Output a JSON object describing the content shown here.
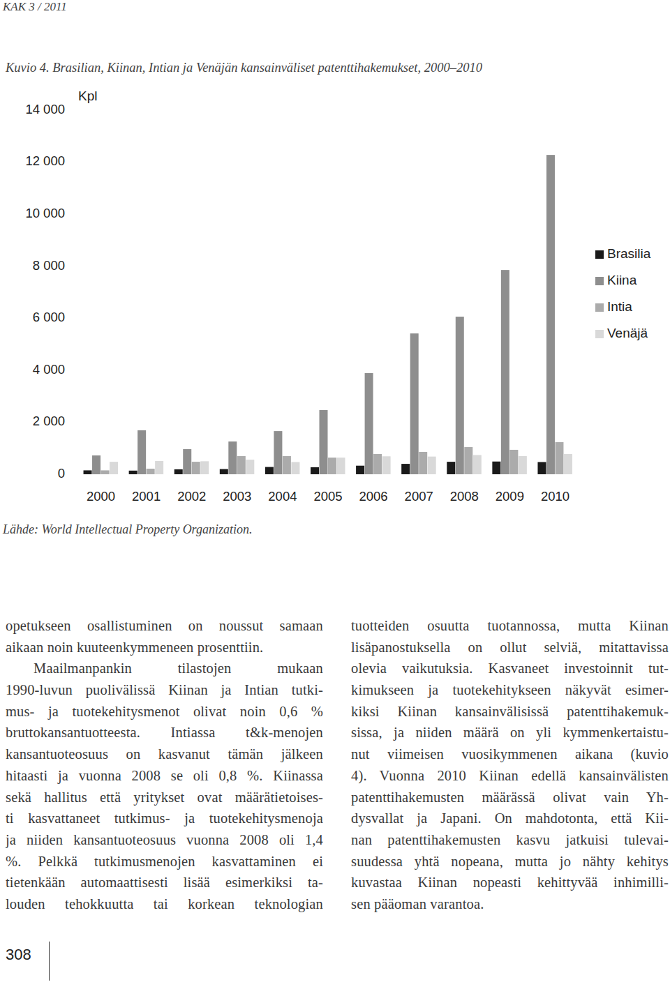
{
  "header": {
    "text": "KAK 3 / 2011"
  },
  "chart_data": {
    "type": "bar",
    "title": "Kuvio 4. Brasilian, Kiinan, Intian ja Venäjän kansainväliset patenttihakemukset, 2000–2010",
    "y_label": "Kpl",
    "source": "Lähde: World Intellectual Property Organization.",
    "categories": [
      "2000",
      "2001",
      "2002",
      "2003",
      "2004",
      "2005",
      "2006",
      "2007",
      "2008",
      "2009",
      "2010"
    ],
    "series": [
      {
        "name": "Brasilia",
        "color": "#1a1a1a",
        "values": [
          150,
          140,
          190,
          200,
          280,
          270,
          330,
          400,
          480,
          490,
          470
        ]
      },
      {
        "name": "Kiina",
        "color": "#8e8e8e",
        "values": [
          724,
          1690,
          965,
          1260,
          1660,
          2470,
          3890,
          5415,
          6060,
          7855,
          12280
        ]
      },
      {
        "name": "Intia",
        "color": "#ababab",
        "values": [
          150,
          215,
          480,
          700,
          700,
          640,
          780,
          860,
          1045,
          940,
          1235
        ]
      },
      {
        "name": "Venäjä",
        "color": "#d9d9d9",
        "values": [
          480,
          510,
          500,
          560,
          470,
          640,
          690,
          680,
          740,
          700,
          780
        ]
      }
    ],
    "ylim": [
      0,
      14000
    ],
    "yticks": [
      0,
      {
        "value": 2000,
        "label": "2 000"
      },
      {
        "value": 4000,
        "label": "4 000"
      },
      {
        "value": 6000,
        "label": "6 000"
      },
      {
        "value": 8000,
        "label": "8 000"
      },
      {
        "value": 10000,
        "label": "10 000"
      },
      {
        "value": 12000,
        "label": "12 000"
      },
      {
        "value": 14000,
        "label": "14 000"
      }
    ],
    "grid": false,
    "legend": "right"
  },
  "body": {
    "columns": [
      [
        [
          "opetukseen osallistuminen on noussut samaan",
          "aikaan noin kuuteenkymmeneen prosenttiin."
        ],
        [
          "Maailmanpankin tilastojen mukaan",
          "1990-luvun puolivälissä Kiinan ja Intian tutki-",
          "mus- ja tuotekehitysmenot olivat noin 0,6 %",
          "bruttokansantuotteesta. Intiassa t&k-menojen",
          "kansantuoteosuus on kasvanut tämän jälkeen",
          "hitaasti ja vuonna 2008 se oli 0,8 %. Kiinassa",
          "sekä hallitus että yritykset ovat määrätietoises-",
          "ti kasvattaneet tutkimus- ja tuotekehitysmenoja",
          "ja niiden kansantuoteosuus vuonna 2008 oli 1,4",
          "%. Pelkkä tutkimusmenojen kasvattaminen ei",
          "tietenkään automaattisesti lisää esimerkiksi ta-",
          "louden tehokkuutta tai korkean teknologian"
        ]
      ],
      [
        [
          "tuotteiden osuutta tuotannossa, mutta Kiinan",
          "lisäpanostuksella on ollut selviä, mitattavissa",
          "olevia vaikutuksia. Kasvaneet investoinnit tut-",
          "kimukseen ja tuotekehitykseen näkyvät esimer-",
          "kiksi Kiinan kansainvälisissä patenttihakemuk-",
          "sissa, ja niiden määrä on yli kymmenkertaistu-",
          "nut viimeisen vuosikymmenen aikana (kuvio",
          "4). Vuonna 2010 Kiinan edellä kansainvälisten",
          "patenttihakemusten määrässä olivat vain Yh-",
          "dysvallat ja Japani. On mahdotonta, että Kii-",
          "nan patenttihakemusten kasvu jatkuisi tulevai-",
          "suudessa yhtä nopeana, mutta jo nähty kehitys",
          "kuvastaa Kiinan nopeasti kehittyvää inhimilli-",
          "sen pääoman varantoa."
        ]
      ]
    ]
  },
  "footer": {
    "page_number": "308"
  }
}
